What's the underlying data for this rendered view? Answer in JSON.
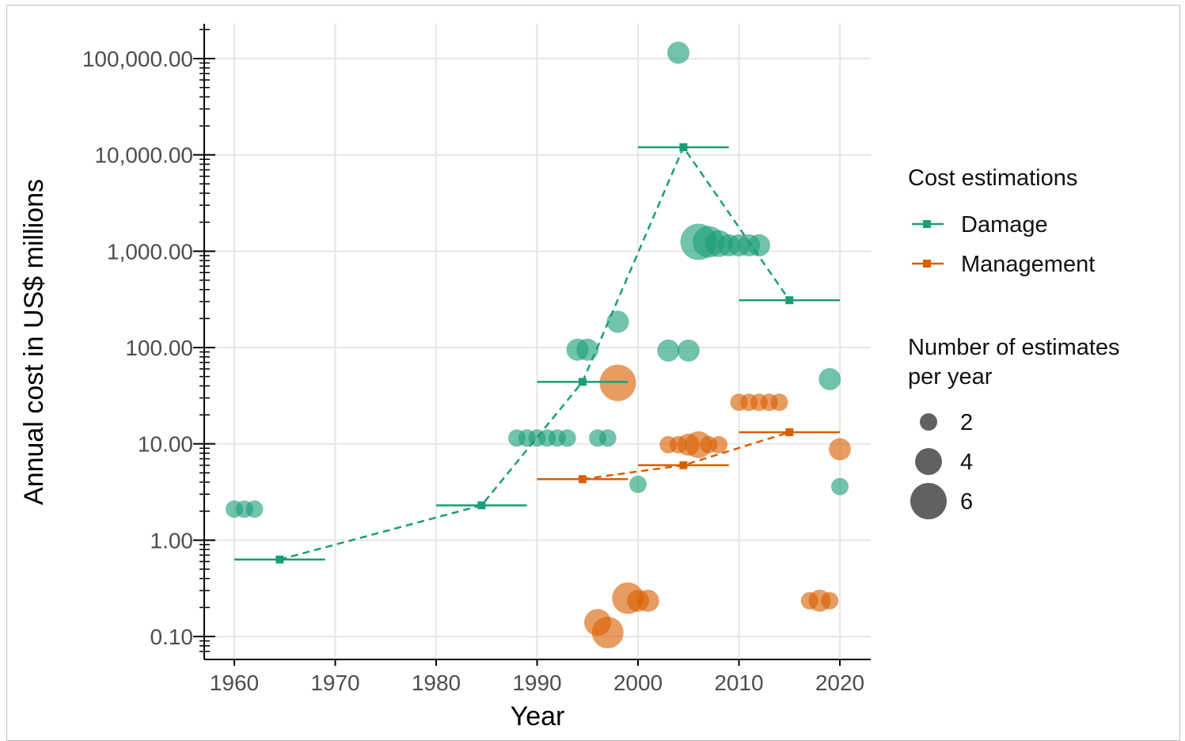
{
  "chart_data": {
    "type": "scatter",
    "x_label": "Year",
    "y_label": "Annual cost in US$ millions",
    "y_scale": "log10",
    "x_range": [
      1959,
      2023
    ],
    "y_range": [
      0.07,
      250000
    ],
    "x_ticks": [
      1960,
      1970,
      1980,
      1990,
      2000,
      2010,
      2020
    ],
    "x_tick_labels": [
      "1960",
      "1970",
      "1980",
      "1990",
      "2000",
      "2010",
      "2020"
    ],
    "y_ticks": [
      0.1,
      1,
      10,
      100,
      1000,
      10000,
      100000
    ],
    "y_tick_labels": [
      "0.10",
      "1.00",
      "10.00",
      "100.00",
      "1,000.00",
      "10,000.00",
      "100,000.00"
    ],
    "grid": true,
    "legend_position": "right",
    "legend": {
      "color_title": "Cost estimations",
      "size_title_line1": "Number of estimates",
      "size_title_line2": "per year",
      "size_entries": [
        "2",
        "4",
        "6"
      ]
    },
    "series": [
      {
        "name": "Damage",
        "color": "#1b9e77",
        "points": [
          {
            "x": 1960,
            "y": 2.1,
            "n": 2
          },
          {
            "x": 1961,
            "y": 2.1,
            "n": 2
          },
          {
            "x": 1962,
            "y": 2.1,
            "n": 2
          },
          {
            "x": 1988,
            "y": 11.5,
            "n": 2
          },
          {
            "x": 1989,
            "y": 11.5,
            "n": 2
          },
          {
            "x": 1990,
            "y": 11.5,
            "n": 2
          },
          {
            "x": 1991,
            "y": 11.5,
            "n": 2
          },
          {
            "x": 1992,
            "y": 11.5,
            "n": 2
          },
          {
            "x": 1993,
            "y": 11.5,
            "n": 2
          },
          {
            "x": 1994,
            "y": 95,
            "n": 3
          },
          {
            "x": 1995,
            "y": 95,
            "n": 3
          },
          {
            "x": 1996,
            "y": 11.5,
            "n": 2
          },
          {
            "x": 1997,
            "y": 11.5,
            "n": 2
          },
          {
            "x": 1998,
            "y": 185,
            "n": 3
          },
          {
            "x": 2000,
            "y": 3.8,
            "n": 2
          },
          {
            "x": 2003,
            "y": 93,
            "n": 3
          },
          {
            "x": 2005,
            "y": 93,
            "n": 3
          },
          {
            "x": 2004,
            "y": 115000,
            "n": 3
          },
          {
            "x": 2006,
            "y": 1250,
            "n": 6
          },
          {
            "x": 2007,
            "y": 1250,
            "n": 5
          },
          {
            "x": 2008,
            "y": 1200,
            "n": 4
          },
          {
            "x": 2009,
            "y": 1150,
            "n": 3
          },
          {
            "x": 2010,
            "y": 1150,
            "n": 3
          },
          {
            "x": 2011,
            "y": 1150,
            "n": 3
          },
          {
            "x": 2012,
            "y": 1150,
            "n": 3
          },
          {
            "x": 2019,
            "y": 47,
            "n": 3
          },
          {
            "x": 2020,
            "y": 3.6,
            "n": 2
          }
        ],
        "decade_means": [
          {
            "x_start": 1960,
            "x_end": 1969,
            "x_mid": 1964.5,
            "y": 0.63
          },
          {
            "x_start": 1980,
            "x_end": 1989,
            "x_mid": 1984.5,
            "y": 2.3
          },
          {
            "x_start": 1990,
            "x_end": 1999,
            "x_mid": 1994.5,
            "y": 44
          },
          {
            "x_start": 2000,
            "x_end": 2009,
            "x_mid": 2004.5,
            "y": 12000
          },
          {
            "x_start": 2010,
            "x_end": 2020,
            "x_mid": 2015,
            "y": 310
          }
        ]
      },
      {
        "name": "Management",
        "color": "#d95f02",
        "points": [
          {
            "x": 1996,
            "y": 0.14,
            "n": 4
          },
          {
            "x": 1997,
            "y": 0.11,
            "n": 5
          },
          {
            "x": 1998,
            "y": 43,
            "n": 6
          },
          {
            "x": 1999,
            "y": 0.25,
            "n": 5
          },
          {
            "x": 2000,
            "y": 0.235,
            "n": 3
          },
          {
            "x": 2001,
            "y": 0.235,
            "n": 3
          },
          {
            "x": 2003,
            "y": 9.8,
            "n": 2
          },
          {
            "x": 2004,
            "y": 9.8,
            "n": 2
          },
          {
            "x": 2005,
            "y": 9.8,
            "n": 3
          },
          {
            "x": 2006,
            "y": 9.8,
            "n": 4
          },
          {
            "x": 2007,
            "y": 9.8,
            "n": 2
          },
          {
            "x": 2008,
            "y": 9.8,
            "n": 2
          },
          {
            "x": 2010,
            "y": 27,
            "n": 2
          },
          {
            "x": 2011,
            "y": 27,
            "n": 2
          },
          {
            "x": 2012,
            "y": 27,
            "n": 2
          },
          {
            "x": 2013,
            "y": 27,
            "n": 2
          },
          {
            "x": 2014,
            "y": 27,
            "n": 2
          },
          {
            "x": 2017,
            "y": 0.235,
            "n": 2
          },
          {
            "x": 2018,
            "y": 0.235,
            "n": 3
          },
          {
            "x": 2019,
            "y": 0.235,
            "n": 2
          },
          {
            "x": 2020,
            "y": 8.8,
            "n": 3
          }
        ],
        "decade_means": [
          {
            "x_start": 1990,
            "x_end": 1999,
            "x_mid": 1994.5,
            "y": 4.3
          },
          {
            "x_start": 2000,
            "x_end": 2009,
            "x_mid": 2004.5,
            "y": 6.0
          },
          {
            "x_start": 2010,
            "x_end": 2020,
            "x_mid": 2015,
            "y": 13.2
          }
        ]
      }
    ]
  }
}
